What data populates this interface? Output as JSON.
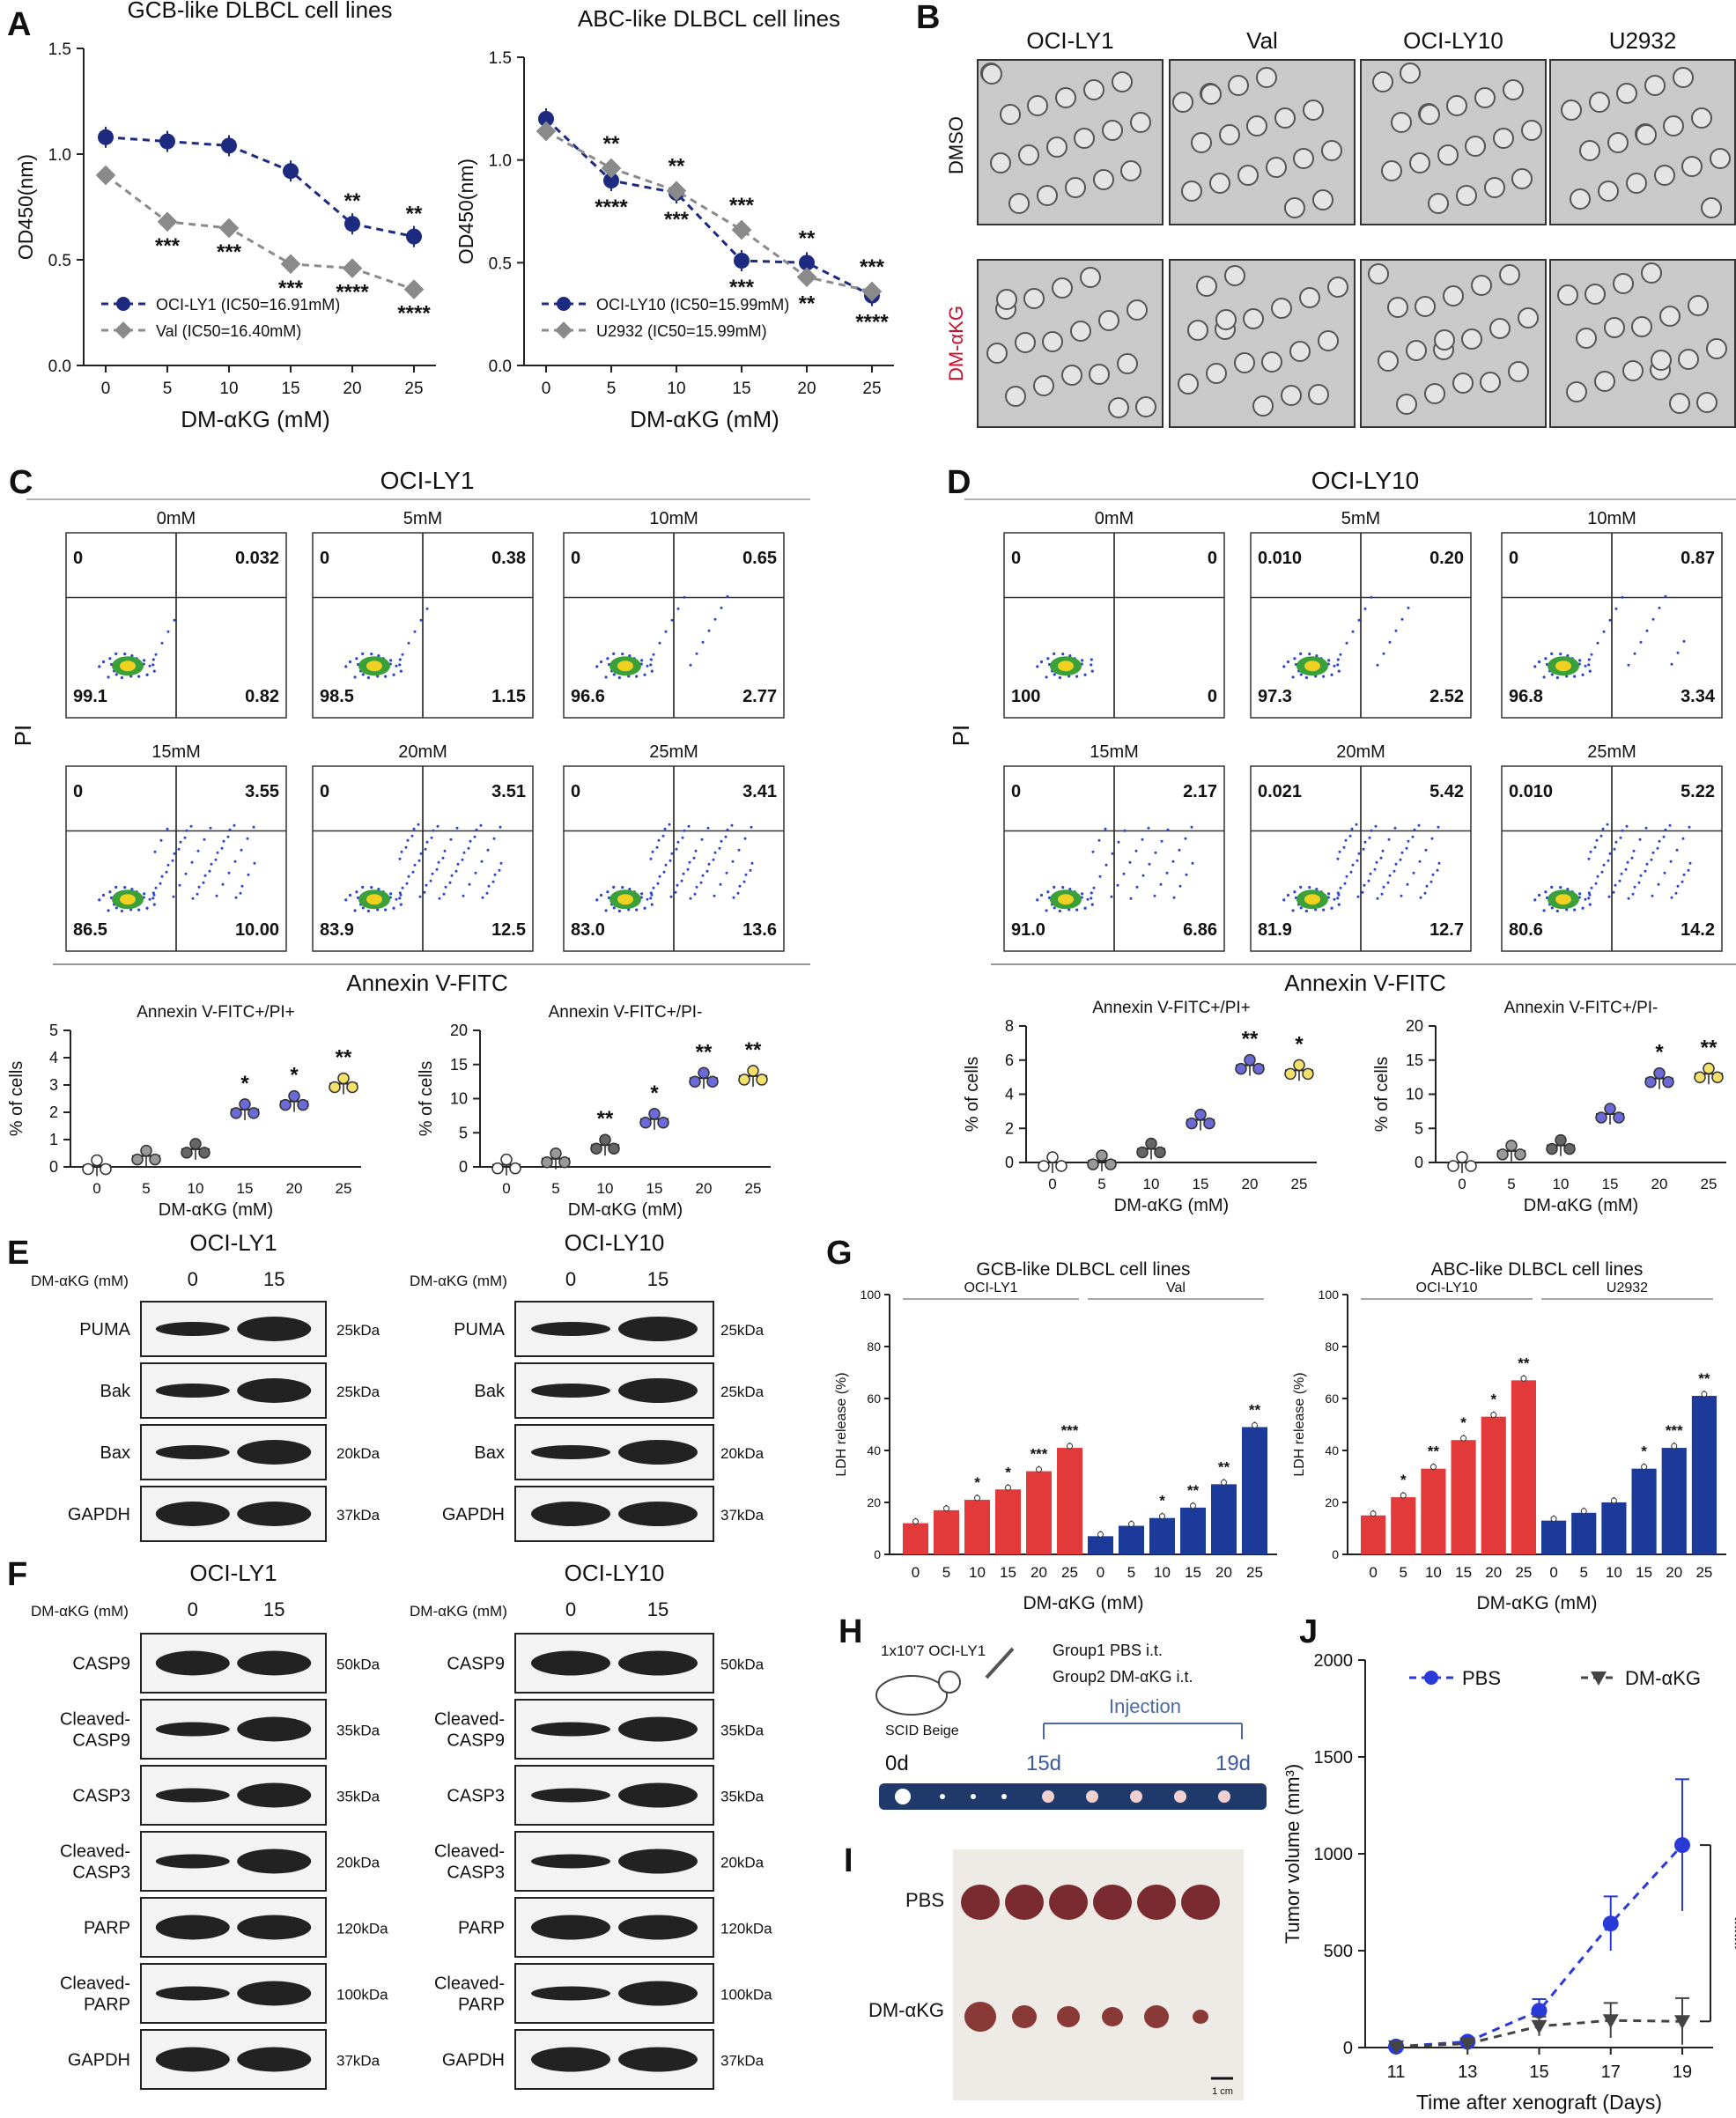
{
  "colors": {
    "navy": "#1c2a80",
    "grey": "#8a8a8a",
    "red": "#e23a3a",
    "blue": "#1b3a9a",
    "dmred": "#c8102e"
  },
  "panelA": {
    "letter": "A",
    "xlabel": "DM-αKG (mM)",
    "left": {
      "title": "GCB-like DLBCL cell lines",
      "ylabel": "OD450(nm)",
      "yticks": [
        "0.0",
        "0.5",
        "1.0",
        "1.5"
      ],
      "xticks": [
        "0",
        "5",
        "10",
        "15",
        "20",
        "25"
      ],
      "legend": [
        "OCI-LY1   (IC50=16.91mM)",
        "Val       (IC50=16.40mM)"
      ],
      "sigTop": [
        "**",
        "**"
      ],
      "sigBottom": [
        "***",
        "***",
        "***",
        "****",
        "****"
      ]
    },
    "right": {
      "title": "ABC-like DLBCL cell lines",
      "ylabel": "OD450(nm)",
      "yticks": [
        "0.0",
        "0.5",
        "1.0",
        "1.5"
      ],
      "xticks": [
        "0",
        "5",
        "10",
        "15",
        "20",
        "25"
      ],
      "legend": [
        "OCI-LY10 (IC50=15.99mM)",
        "U2932     (IC50=15.99mM)"
      ],
      "sigTop": [
        "**",
        "**",
        "***",
        "**",
        "***"
      ],
      "sigBottom": [
        "****",
        "***",
        "***",
        "**",
        "****"
      ]
    }
  },
  "chart_data": [
    {
      "type": "line",
      "title": "GCB-like DLBCL cell lines",
      "xlabel": "DM-αKG (mM)",
      "ylabel": "OD450(nm)",
      "x": [
        0,
        5,
        10,
        15,
        20,
        25
      ],
      "ylim": [
        0,
        1.5
      ],
      "series": [
        {
          "name": "OCI-LY1 (IC50=16.91mM)",
          "values": [
            1.08,
            1.06,
            1.04,
            0.92,
            0.67,
            0.61
          ]
        },
        {
          "name": "Val (IC50=16.40mM)",
          "values": [
            0.9,
            0.68,
            0.65,
            0.48,
            0.46,
            0.36
          ]
        }
      ]
    },
    {
      "type": "line",
      "title": "ABC-like DLBCL cell lines",
      "xlabel": "DM-αKG (mM)",
      "ylabel": "OD450(nm)",
      "x": [
        0,
        5,
        10,
        15,
        20,
        25
      ],
      "ylim": [
        0,
        1.5
      ],
      "series": [
        {
          "name": "OCI-LY10 (IC50=15.99mM)",
          "values": [
            1.2,
            0.9,
            0.84,
            0.51,
            0.5,
            0.34
          ]
        },
        {
          "name": "U2932 (IC50=15.99mM)",
          "values": [
            1.14,
            0.96,
            0.85,
            0.66,
            0.43,
            0.36
          ]
        }
      ]
    },
    {
      "type": "scatter",
      "title": "Annexin V-FITC+/PI+",
      "panel": "C",
      "xlabel": "DM-αKG (mM)",
      "ylabel": "% of cells",
      "categories": [
        "0",
        "5",
        "10",
        "15",
        "20",
        "25"
      ],
      "values": [
        0.05,
        0.4,
        0.65,
        2.1,
        2.4,
        3.05
      ],
      "ylim": [
        0,
        5
      ]
    },
    {
      "type": "scatter",
      "title": "Annexin V-FITC+/PI-",
      "panel": "C",
      "xlabel": "DM-αKG (mM)",
      "ylabel": "% of cells",
      "categories": [
        "0",
        "5",
        "10",
        "15",
        "20",
        "25"
      ],
      "values": [
        0.3,
        1.2,
        3.2,
        7.0,
        13.0,
        13.3
      ],
      "ylim": [
        0,
        20
      ]
    },
    {
      "type": "scatter",
      "title": "Annexin V-FITC+/PI+",
      "panel": "D",
      "xlabel": "DM-αKG (mM)",
      "ylabel": "% of cells",
      "categories": [
        "0",
        "5",
        "10",
        "15",
        "20",
        "25"
      ],
      "values": [
        0.0,
        0.1,
        0.8,
        2.5,
        5.7,
        5.4
      ],
      "ylim": [
        0,
        8
      ]
    },
    {
      "type": "scatter",
      "title": "Annexin V-FITC+/PI-",
      "panel": "D",
      "xlabel": "DM-αKG (mM)",
      "ylabel": "% of cells",
      "categories": [
        "0",
        "5",
        "10",
        "15",
        "20",
        "25"
      ],
      "values": [
        0.0,
        1.7,
        2.5,
        7.1,
        12.3,
        13.0
      ],
      "ylim": [
        0,
        20
      ]
    },
    {
      "type": "bar",
      "title": "GCB-like DLBCL cell lines",
      "panel": "G",
      "xlabel": "DM-αKG (mM)",
      "ylabel": "LDH release (%)",
      "categories": [
        "0",
        "5",
        "10",
        "15",
        "20",
        "25"
      ],
      "ylim": [
        0,
        100
      ],
      "series": [
        {
          "name": "OCI-LY1",
          "values": [
            12,
            17,
            21,
            25,
            32,
            41
          ]
        },
        {
          "name": "Val",
          "values": [
            7,
            11,
            14,
            18,
            27,
            49
          ]
        }
      ]
    },
    {
      "type": "bar",
      "title": "ABC-like DLBCL cell lines",
      "panel": "G",
      "xlabel": "DM-αKG (mM)",
      "ylabel": "LDH release (%)",
      "categories": [
        "0",
        "5",
        "10",
        "15",
        "20",
        "25"
      ],
      "ylim": [
        0,
        100
      ],
      "series": [
        {
          "name": "OCI-LY10",
          "values": [
            15,
            22,
            33,
            44,
            53,
            67
          ]
        },
        {
          "name": "U2932",
          "values": [
            13,
            16,
            20,
            33,
            41,
            61
          ]
        }
      ]
    },
    {
      "type": "line",
      "title": "Tumor volume",
      "panel": "J",
      "xlabel": "Time after xenograft (Days)",
      "ylabel": "Tumor volume (mm³)",
      "x": [
        11,
        13,
        15,
        17,
        19
      ],
      "ylim": [
        0,
        2000
      ],
      "series": [
        {
          "name": "PBS",
          "values": [
            5,
            30,
            190,
            640,
            1045
          ]
        },
        {
          "name": "DM-αKG",
          "values": [
            5,
            20,
            110,
            140,
            135
          ]
        }
      ]
    }
  ],
  "panelB": {
    "letter": "B",
    "columns": [
      "OCI-LY1",
      "Val",
      "OCI-LY10",
      "U2932"
    ],
    "rows": [
      "DMSO",
      "DM-αKG"
    ]
  },
  "panelC": {
    "letter": "C",
    "title": "OCI-LY1",
    "ylabel": "PI",
    "xlabel": "Annexin V-FITC",
    "plots": [
      {
        "conc": "0mM",
        "q": [
          "0",
          "0.032",
          "99.1",
          "0.82"
        ]
      },
      {
        "conc": "5mM",
        "q": [
          "0",
          "0.38",
          "98.5",
          "1.15"
        ]
      },
      {
        "conc": "10mM",
        "q": [
          "0",
          "0.65",
          "96.6",
          "2.77"
        ]
      },
      {
        "conc": "15mM",
        "q": [
          "0",
          "3.55",
          "86.5",
          "10.00"
        ]
      },
      {
        "conc": "20mM",
        "q": [
          "0",
          "3.51",
          "83.9",
          "12.5"
        ]
      },
      {
        "conc": "25mM",
        "q": [
          "0",
          "3.41",
          "83.0",
          "13.6"
        ]
      }
    ],
    "bar1": {
      "title": "Annexin V-FITC+/PI+",
      "ylabel": "% of cells",
      "yticks": [
        "0",
        "1",
        "2",
        "3",
        "4",
        "5"
      ],
      "sig": [
        "*",
        "*",
        "**"
      ]
    },
    "bar2": {
      "title": "Annexin V-FITC+/PI-",
      "ylabel": "% of cells",
      "yticks": [
        "0",
        "5",
        "10",
        "15",
        "20"
      ],
      "sig": [
        "**",
        "*",
        "**",
        "**"
      ]
    },
    "xlabel2": "DM-αKG (mM)",
    "xticks": [
      "0",
      "5",
      "10",
      "15",
      "20",
      "25"
    ]
  },
  "panelD": {
    "letter": "D",
    "title": "OCI-LY10",
    "ylabel": "PI",
    "xlabel": "Annexin V-FITC",
    "plots": [
      {
        "conc": "0mM",
        "q": [
          "0",
          "0",
          "100",
          "0"
        ]
      },
      {
        "conc": "5mM",
        "q": [
          "0.010",
          "0.20",
          "97.3",
          "2.52"
        ]
      },
      {
        "conc": "10mM",
        "q": [
          "0",
          "0.87",
          "96.8",
          "3.34"
        ]
      },
      {
        "conc": "15mM",
        "q": [
          "0",
          "2.17",
          "91.0",
          "6.86"
        ]
      },
      {
        "conc": "20mM",
        "q": [
          "0.021",
          "5.42",
          "81.9",
          "12.7"
        ]
      },
      {
        "conc": "25mM",
        "q": [
          "0.010",
          "5.22",
          "80.6",
          "14.2"
        ]
      }
    ],
    "bar1": {
      "title": "Annexin V-FITC+/PI+",
      "ylabel": "% of cells",
      "yticks": [
        "0",
        "2",
        "4",
        "6",
        "8"
      ],
      "sig": [
        "**",
        "*"
      ]
    },
    "bar2": {
      "title": "Annexin V-FITC+/PI-",
      "ylabel": "% of cells",
      "yticks": [
        "0",
        "5",
        "10",
        "15",
        "20"
      ],
      "sig": [
        "*",
        "**"
      ]
    },
    "xlabel2": "DM-αKG (mM)",
    "xticks": [
      "0",
      "5",
      "10",
      "15",
      "20",
      "25"
    ]
  },
  "panelE": {
    "letter": "E",
    "doseLabel": "DM-αKG (mM)",
    "doses": [
      "0",
      "15"
    ],
    "left": {
      "title": "OCI-LY1",
      "rows": [
        {
          "name": "PUMA",
          "kda": "25kDa"
        },
        {
          "name": "Bak",
          "kda": "25kDa"
        },
        {
          "name": "Bax",
          "kda": "20kDa"
        },
        {
          "name": "GAPDH",
          "kda": "37kDa"
        }
      ]
    },
    "right": {
      "title": "OCI-LY10",
      "rows": [
        {
          "name": "PUMA",
          "kda": "25kDa"
        },
        {
          "name": "Bak",
          "kda": "25kDa"
        },
        {
          "name": "Bax",
          "kda": "20kDa"
        },
        {
          "name": "GAPDH",
          "kda": "37kDa"
        }
      ]
    }
  },
  "panelF": {
    "letter": "F",
    "doseLabel": "DM-αKG (mM)",
    "doses": [
      "0",
      "15"
    ],
    "left": {
      "title": "OCI-LY1",
      "rows": [
        {
          "name": "CASP9",
          "kda": "50kDa"
        },
        {
          "name": "Cleaved-\nCASP9",
          "kda": "35kDa"
        },
        {
          "name": "CASP3",
          "kda": "35kDa"
        },
        {
          "name": "Cleaved-\nCASP3",
          "kda": "20kDa"
        },
        {
          "name": "PARP",
          "kda": "120kDa"
        },
        {
          "name": "Cleaved-\nPARP",
          "kda": "100kDa"
        },
        {
          "name": "GAPDH",
          "kda": "37kDa"
        }
      ]
    },
    "right": {
      "title": "OCI-LY10",
      "rows": [
        {
          "name": "CASP9",
          "kda": "50kDa"
        },
        {
          "name": "Cleaved-\nCASP9",
          "kda": "35kDa"
        },
        {
          "name": "CASP3",
          "kda": "35kDa"
        },
        {
          "name": "Cleaved-\nCASP3",
          "kda": "20kDa"
        },
        {
          "name": "PARP",
          "kda": "120kDa"
        },
        {
          "name": "Cleaved-\nPARP",
          "kda": "100kDa"
        },
        {
          "name": "GAPDH",
          "kda": "37kDa"
        }
      ]
    }
  },
  "panelG": {
    "letter": "G",
    "xlabel": "DM-αKG (mM)",
    "ylabel": "LDH release (%)",
    "yticks": [
      "0",
      "20",
      "40",
      "60",
      "80",
      "100"
    ],
    "xticks": [
      "0",
      "5",
      "10",
      "15",
      "20",
      "25"
    ],
    "left": {
      "title": "GCB-like DLBCL cell lines",
      "groups": [
        "OCI-LY1",
        "Val"
      ],
      "sig1": [
        "",
        "",
        "*",
        "*",
        "***",
        "***"
      ],
      "sig2": [
        "",
        "",
        "*",
        "**",
        "**",
        "**"
      ]
    },
    "right": {
      "title": "ABC-like DLBCL cell lines",
      "groups": [
        "OCI-LY10",
        "U2932"
      ],
      "sig1": [
        "",
        "*",
        "**",
        "*",
        "*",
        "**"
      ],
      "sig2": [
        "",
        "",
        "",
        "*",
        "***",
        "**"
      ]
    }
  },
  "panelH": {
    "letter": "H",
    "cells": "1x10'7  OCI-LY1",
    "mouse": "SCID Beige",
    "group1": "Group1  PBS  i.t.",
    "group2": "Group2  DM-αKG i.t.",
    "injection": "Injection",
    "d0": "0d",
    "d15": "15d",
    "d19": "19d"
  },
  "panelI": {
    "letter": "I",
    "rows": [
      "PBS",
      "DM-αKG"
    ],
    "scale": "1 cm"
  },
  "panelJ": {
    "letter": "J",
    "ylabel": "Tumor volume (mm³)",
    "xlabel": "Time after xenograft (Days)",
    "yticks": [
      "0",
      "500",
      "1000",
      "1500",
      "2000"
    ],
    "xticks": [
      "11",
      "13",
      "15",
      "17",
      "19"
    ],
    "legend": [
      "PBS",
      "DM-αKG"
    ],
    "sig": "****"
  }
}
